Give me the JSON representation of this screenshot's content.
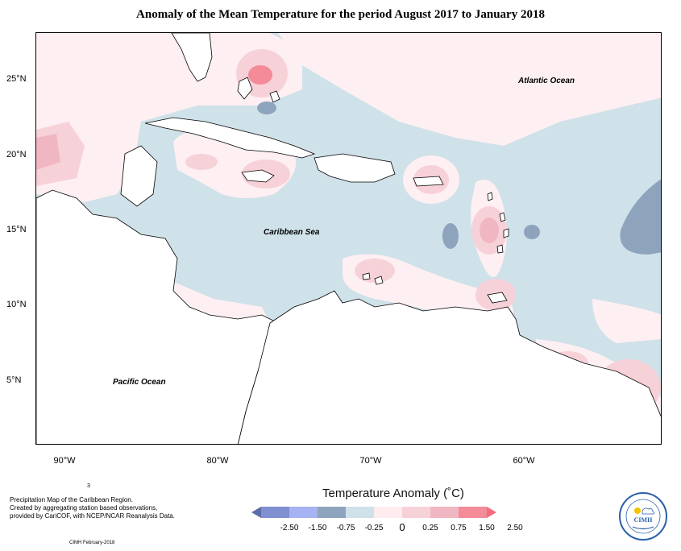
{
  "title": "Anomaly of the Mean Temperature for the period August 2017 to January 2018",
  "labels": {
    "atlantic": "Atlantic Ocean",
    "caribbean": "Caribbean Sea",
    "pacific": "Pacific Ocean"
  },
  "lat_ticks": [
    "25°N",
    "20°N",
    "15°N",
    "10°N",
    "5°N"
  ],
  "lon_ticks": [
    "90°W",
    "80°W",
    "70°W",
    "60°W"
  ],
  "legend": {
    "title": "Temperature Anomaly (˚C)",
    "values": [
      "-2.50",
      "-1.50",
      "-0.75",
      "-0.25",
      "0",
      "0.25",
      "0.75",
      "1.50",
      "2.50"
    ],
    "colors": [
      "#5a6ea8",
      "#7f8fd0",
      "#a5b3f2",
      "#8ea4bd",
      "#cfe1e9",
      "#ffecef",
      "#f7d1d8",
      "#f0b7c2",
      "#f38b99",
      "#f56b7b"
    ]
  },
  "footer": {
    "small_mark": "3",
    "line1": "Precipitation Map of the Caribbean Region.",
    "line2": "Created by aggregating station based observations,",
    "line3": "provided by CariCOF, with NCEP/NCAR Reanalysis Data.",
    "credit": "CIMH February-2018"
  },
  "logo": {
    "text": "CIMH"
  }
}
